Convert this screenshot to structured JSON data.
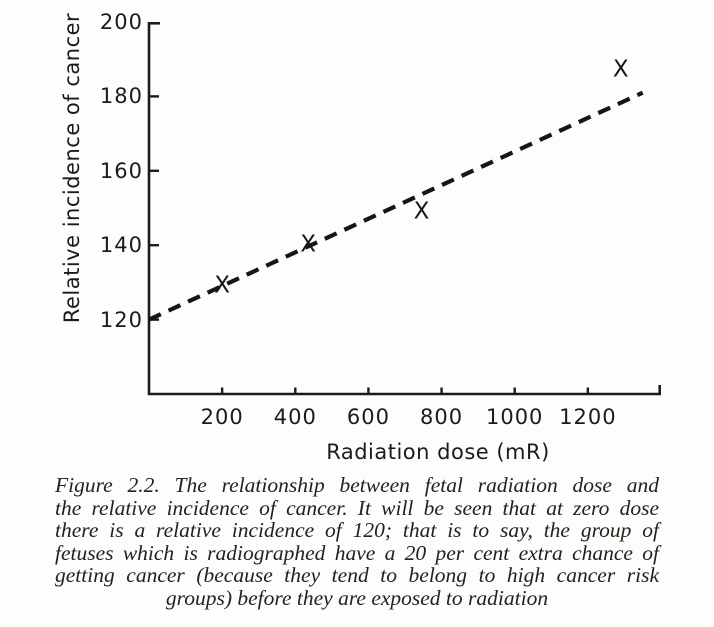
{
  "colors": {
    "ink": "#1d1b19",
    "background": "#fdfdfc"
  },
  "chart_data": {
    "type": "scatter",
    "title": "",
    "xlabel": "Radiation dose (mR)",
    "ylabel": "Relative incidence of cancer",
    "xlim": [
      0,
      1400
    ],
    "ylim": [
      100,
      200
    ],
    "x_ticks": [
      200,
      400,
      600,
      800,
      1000,
      1200
    ],
    "x_axis_end_tick": 1400,
    "y_ticks": [
      120,
      140,
      160,
      180,
      200
    ],
    "grid": false,
    "marker_glyph": "X",
    "points": [
      {
        "x": 200,
        "y": 129
      },
      {
        "x": 435,
        "y": 140
      },
      {
        "x": 745,
        "y": 149
      },
      {
        "x": 1290,
        "y": 187
      }
    ],
    "trend_line": {
      "style": "dashed",
      "from": {
        "x": 0,
        "y": 120
      },
      "to": {
        "x": 1350,
        "y": 181
      }
    }
  },
  "figure": {
    "caption_lines": [
      "Figure 2.2. The relationship between fetal radiation dose and",
      "the relative incidence of cancer. It will be seen that at zero dose",
      "there is a relative incidence of 120; that is to say, the group of",
      "fetuses which is radiographed have a 20 per cent extra chance of",
      "getting cancer (because they tend to belong to high cancer risk",
      "groups) before they are exposed to radiation"
    ]
  }
}
